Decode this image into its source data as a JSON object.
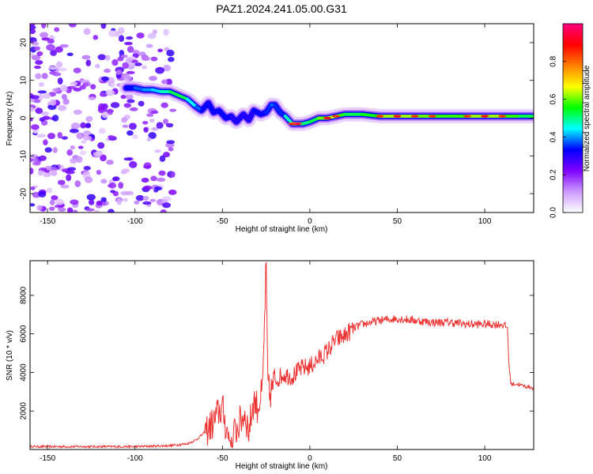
{
  "title": "PAZ1.2024.241.05.00.G31",
  "chart_data": [
    {
      "type": "heatmap",
      "xlabel": "Height of straight line (km)",
      "ylabel": "Frequency (Hz)",
      "xlim": [
        -160,
        128
      ],
      "ylim": [
        -25,
        25
      ],
      "xticks": [
        -150,
        -100,
        -50,
        0,
        50,
        100
      ],
      "yticks": [
        -20,
        -10,
        0,
        10,
        20
      ],
      "colorbar": {
        "label": "Normalized spectral amplitude",
        "range": [
          0,
          1
        ],
        "ticks": [
          0.0,
          0.2,
          0.4,
          0.6,
          0.8
        ],
        "tick_labels": [
          "0.0",
          "0.2",
          "0.4",
          "0.6",
          "0.8"
        ],
        "colormap_stops": [
          "#ffffff",
          "#cc99ff",
          "#7f00ff",
          "#0000ff",
          "#00ffff",
          "#00ff00",
          "#ffff00",
          "#ff7f00",
          "#ff0000",
          "#ff0080"
        ]
      },
      "ridge": {
        "x": [
          -105,
          -100,
          -95,
          -90,
          -85,
          -80,
          -75,
          -70,
          -65,
          -62,
          -58,
          -55,
          -52,
          -48,
          -45,
          -42,
          -38,
          -35,
          -32,
          -28,
          -25,
          -22,
          -20,
          -17,
          -14,
          -10,
          -7,
          -4,
          0,
          5,
          10,
          15,
          20,
          30,
          40,
          50,
          60,
          70,
          80,
          90,
          100,
          110,
          120,
          128
        ],
        "y": [
          8,
          8,
          7.5,
          7.5,
          7,
          7,
          6,
          5,
          3,
          2,
          4,
          1.5,
          2,
          0,
          0.5,
          -1,
          1,
          -0.5,
          2,
          1,
          1.5,
          3.5,
          3.5,
          1.5,
          0.5,
          -1.5,
          -1.5,
          -1.5,
          -1,
          0,
          0,
          0.5,
          1,
          1,
          0.5,
          0.5,
          0.5,
          0.5,
          0.5,
          0.5,
          0.5,
          0.5,
          0.5,
          0.5
        ],
        "amplitude": [
          0.3,
          0.35,
          0.4,
          0.4,
          0.45,
          0.5,
          0.55,
          0.5,
          0.4,
          0.35,
          0.3,
          0.35,
          0.3,
          0.35,
          0.3,
          0.3,
          0.3,
          0.3,
          0.3,
          0.35,
          0.3,
          0.4,
          0.35,
          0.35,
          0.35,
          0.6,
          0.7,
          0.5,
          0.5,
          0.55,
          0.65,
          0.6,
          0.55,
          0.5,
          0.6,
          0.65,
          0.6,
          0.6,
          0.55,
          0.6,
          0.65,
          0.6,
          0.55,
          0.5
        ]
      },
      "noise_region": {
        "x_range": [
          -160,
          -78
        ],
        "y_range": [
          -25,
          25
        ],
        "amplitude": [
          0.05,
          0.3
        ]
      }
    },
    {
      "type": "line",
      "xlabel": "Height of straight line (km)",
      "ylabel": "SNR (10 * v/v)",
      "xlim": [
        -160,
        128
      ],
      "ylim": [
        0,
        9800
      ],
      "xticks": [
        -150,
        -100,
        -50,
        0,
        50,
        100
      ],
      "yticks": [
        2000,
        4000,
        6000,
        8000
      ],
      "series": [
        {
          "color": "#ee3333",
          "x": [
            -160,
            -140,
            -120,
            -100,
            -80,
            -70,
            -65,
            -60,
            -55,
            -52,
            -50,
            -47,
            -45,
            -40,
            -37,
            -35,
            -32,
            -30,
            -27,
            -25,
            -24,
            -23,
            -20,
            -15,
            -10,
            -5,
            0,
            5,
            10,
            15,
            20,
            25,
            30,
            40,
            50,
            60,
            70,
            80,
            90,
            100,
            110,
            113,
            114,
            115,
            118,
            122,
            128
          ],
          "y": [
            150,
            150,
            150,
            150,
            200,
            300,
            500,
            900,
            1400,
            2000,
            2100,
            800,
            500,
            1400,
            1900,
            900,
            2600,
            2200,
            3000,
            9800,
            3500,
            2800,
            3600,
            3900,
            3800,
            4200,
            4300,
            4700,
            5100,
            5700,
            5900,
            6300,
            6500,
            6700,
            6800,
            6700,
            6600,
            6600,
            6500,
            6500,
            6500,
            6300,
            4200,
            3400,
            3400,
            3300,
            3200
          ]
        }
      ]
    }
  ]
}
